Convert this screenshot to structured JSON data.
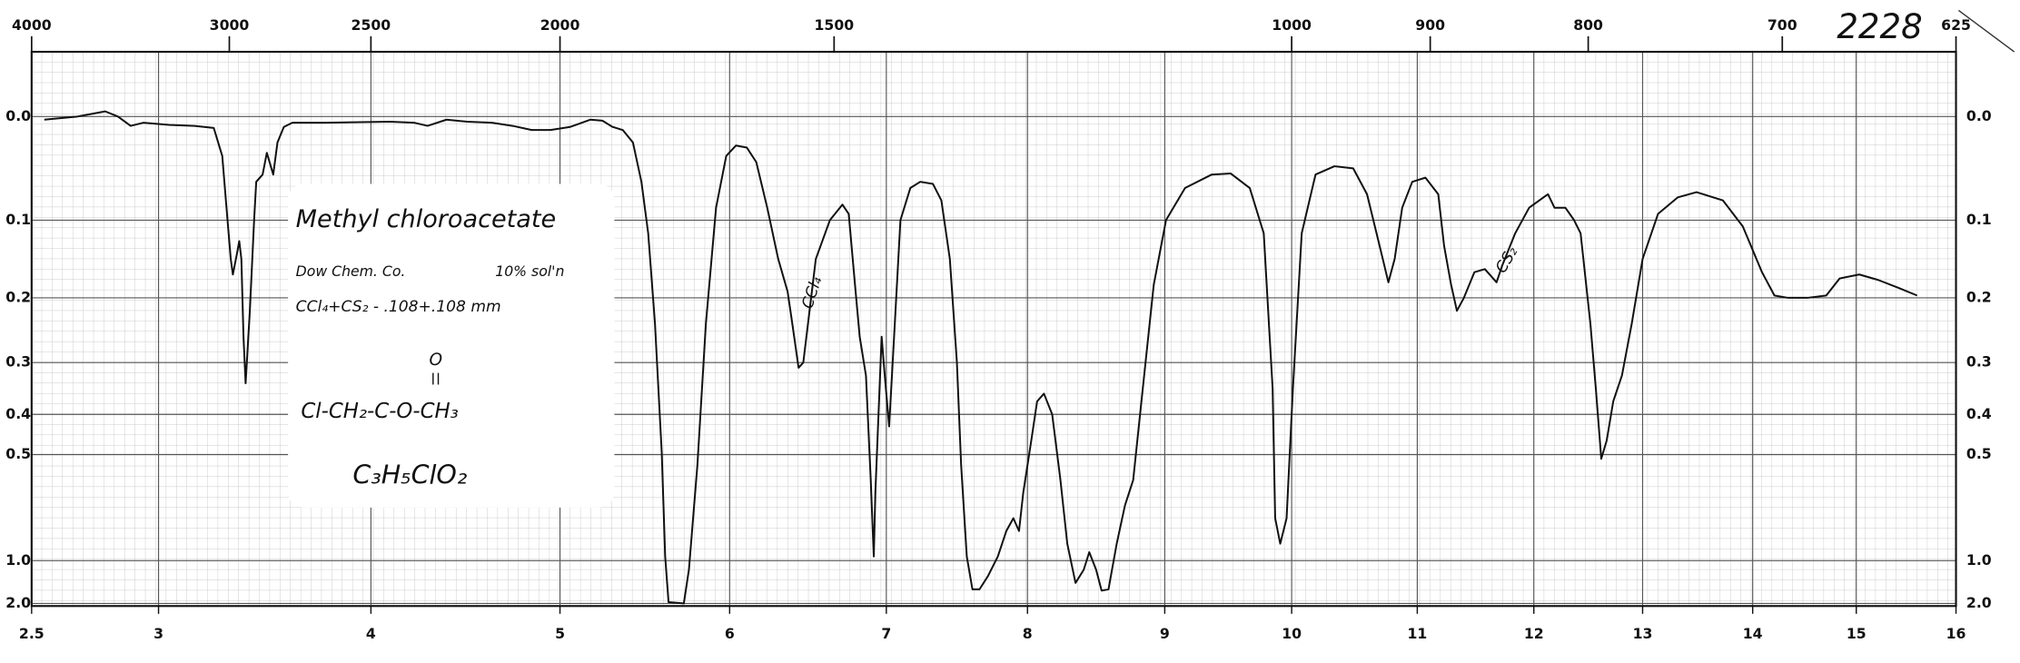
{
  "chart_data": {
    "type": "line",
    "color": "#111111",
    "grid": true,
    "annotations": [
      "Methyl chloroacetate",
      "Dow Chem. Co.",
      "10% sol'n",
      "CCl₄+CS₂ - .108+.108 mm",
      "O",
      "Cl-CH₂-C-O-CH₃",
      "C₃H₅ClO₂",
      "CCl₄",
      "CS₂",
      "2228"
    ],
    "xlim": [
      2.5,
      16
    ],
    "xticks": [
      2.5,
      3,
      4,
      5,
      6,
      7,
      8,
      9,
      10,
      11,
      12,
      13,
      14,
      15,
      16
    ],
    "x2ticks": [
      4000,
      3000,
      2500,
      2000,
      1500,
      1000,
      900,
      800,
      700,
      625
    ],
    "ylim": [
      -0.06,
      2
    ],
    "yticks": [
      {
        "value": 0,
        "label": "0.0"
      },
      0.1,
      0.2,
      0.3,
      0.4,
      0.5,
      {
        "value": 1,
        "label": "1.0"
      },
      {
        "value": 2,
        "label": "2.0"
      }
    ],
    "x": [
      2.55,
      2.68,
      2.79,
      2.84,
      2.89,
      2.94,
      3.05,
      3.17,
      3.26,
      3.3,
      3.32,
      3.34,
      3.35,
      3.37,
      3.38,
      3.39,
      3.4,
      3.41,
      3.43,
      3.45,
      3.46,
      3.49,
      3.51,
      3.54,
      3.56,
      3.59,
      3.63,
      3.78,
      4.1,
      4.23,
      4.3,
      4.4,
      4.51,
      4.64,
      4.75,
      4.85,
      4.95,
      5.06,
      5.18,
      5.25,
      5.31,
      5.37,
      5.43,
      5.48,
      5.52,
      5.56,
      5.6,
      5.62,
      5.64,
      5.73,
      5.76,
      5.81,
      5.86,
      5.92,
      5.98,
      6.04,
      6.11,
      6.17,
      6.24,
      6.31,
      6.37,
      6.4,
      6.44,
      6.47,
      6.5,
      6.55,
      6.64,
      6.72,
      6.76,
      6.8,
      6.83,
      6.87,
      6.9,
      6.92,
      6.93,
      6.97,
      6.99,
      7.02,
      7.06,
      7.1,
      7.17,
      7.24,
      7.33,
      7.39,
      7.45,
      7.5,
      7.53,
      7.57,
      7.61,
      7.66,
      7.72,
      7.79,
      7.85,
      7.9,
      7.94,
      7.97,
      8.03,
      8.07,
      8.12,
      8.18,
      8.24,
      8.29,
      8.35,
      8.41,
      8.45,
      8.5,
      8.54,
      8.59,
      8.65,
      8.71,
      8.77,
      8.84,
      8.92,
      9.01,
      9.16,
      9.37,
      9.52,
      9.67,
      9.78,
      9.85,
      9.87,
      9.91,
      9.96,
      10.01,
      10.08,
      10.19,
      10.34,
      10.49,
      10.6,
      10.7,
      10.77,
      10.82,
      10.88,
      10.96,
      11.07,
      11.18,
      11.23,
      11.29,
      11.34,
      11.4,
      11.49,
      11.58,
      11.68,
      11.73,
      11.84,
      11.96,
      12.05,
      12.13,
      12.19,
      12.29,
      12.37,
      12.43,
      12.52,
      12.57,
      12.62,
      12.67,
      12.73,
      12.81,
      12.9,
      13.0,
      13.14,
      13.32,
      13.49,
      13.73,
      13.91,
      14.09,
      14.21,
      14.34,
      14.53,
      14.71,
      14.84,
      15.03,
      15.22,
      15.42,
      15.61
    ],
    "values": [
      0.003,
      0,
      -0.005,
      0,
      0.009,
      0.006,
      0.008,
      0.009,
      0.011,
      0.038,
      0.088,
      0.15,
      0.17,
      0.142,
      0.127,
      0.15,
      0.26,
      0.34,
      0.22,
      0.1,
      0.063,
      0.056,
      0.035,
      0.056,
      0.025,
      0.01,
      0.006,
      0.006,
      0.005,
      0.006,
      0.009,
      0.003,
      0.005,
      0.006,
      0.009,
      0.013,
      0.013,
      0.01,
      0.003,
      0.004,
      0.01,
      0.013,
      0.025,
      0.063,
      0.117,
      0.24,
      0.497,
      0.98,
      1.97,
      2.0,
      1.21,
      0.55,
      0.24,
      0.088,
      0.038,
      0.028,
      0.03,
      0.044,
      0.088,
      0.15,
      0.192,
      0.24,
      0.31,
      0.3,
      0.24,
      0.15,
      0.1,
      0.085,
      0.094,
      0.183,
      0.26,
      0.325,
      0.61,
      0.98,
      0.68,
      0.26,
      0.325,
      0.43,
      0.24,
      0.1,
      0.069,
      0.063,
      0.065,
      0.081,
      0.15,
      0.3,
      0.55,
      0.98,
      1.67,
      1.67,
      1.36,
      0.98,
      0.86,
      0.8,
      0.86,
      0.68,
      0.46,
      0.375,
      0.36,
      0.4,
      0.62,
      0.92,
      1.52,
      1.21,
      0.96,
      1.21,
      1.7,
      1.67,
      0.92,
      0.74,
      0.62,
      0.35,
      0.183,
      0.1,
      0.069,
      0.056,
      0.055,
      0.069,
      0.117,
      0.35,
      0.8,
      0.92,
      0.8,
      0.35,
      0.117,
      0.056,
      0.048,
      0.05,
      0.075,
      0.133,
      0.18,
      0.15,
      0.088,
      0.063,
      0.059,
      0.075,
      0.133,
      0.183,
      0.22,
      0.2,
      0.167,
      0.163,
      0.18,
      0.158,
      0.117,
      0.088,
      0.081,
      0.075,
      0.088,
      0.088,
      0.1,
      0.117,
      0.24,
      0.35,
      0.52,
      0.465,
      0.375,
      0.325,
      0.24,
      0.15,
      0.094,
      0.078,
      0.073,
      0.081,
      0.108,
      0.167,
      0.197,
      0.2,
      0.2,
      0.197,
      0.175,
      0.17,
      0.177,
      0.187,
      0.197
    ]
  }
}
